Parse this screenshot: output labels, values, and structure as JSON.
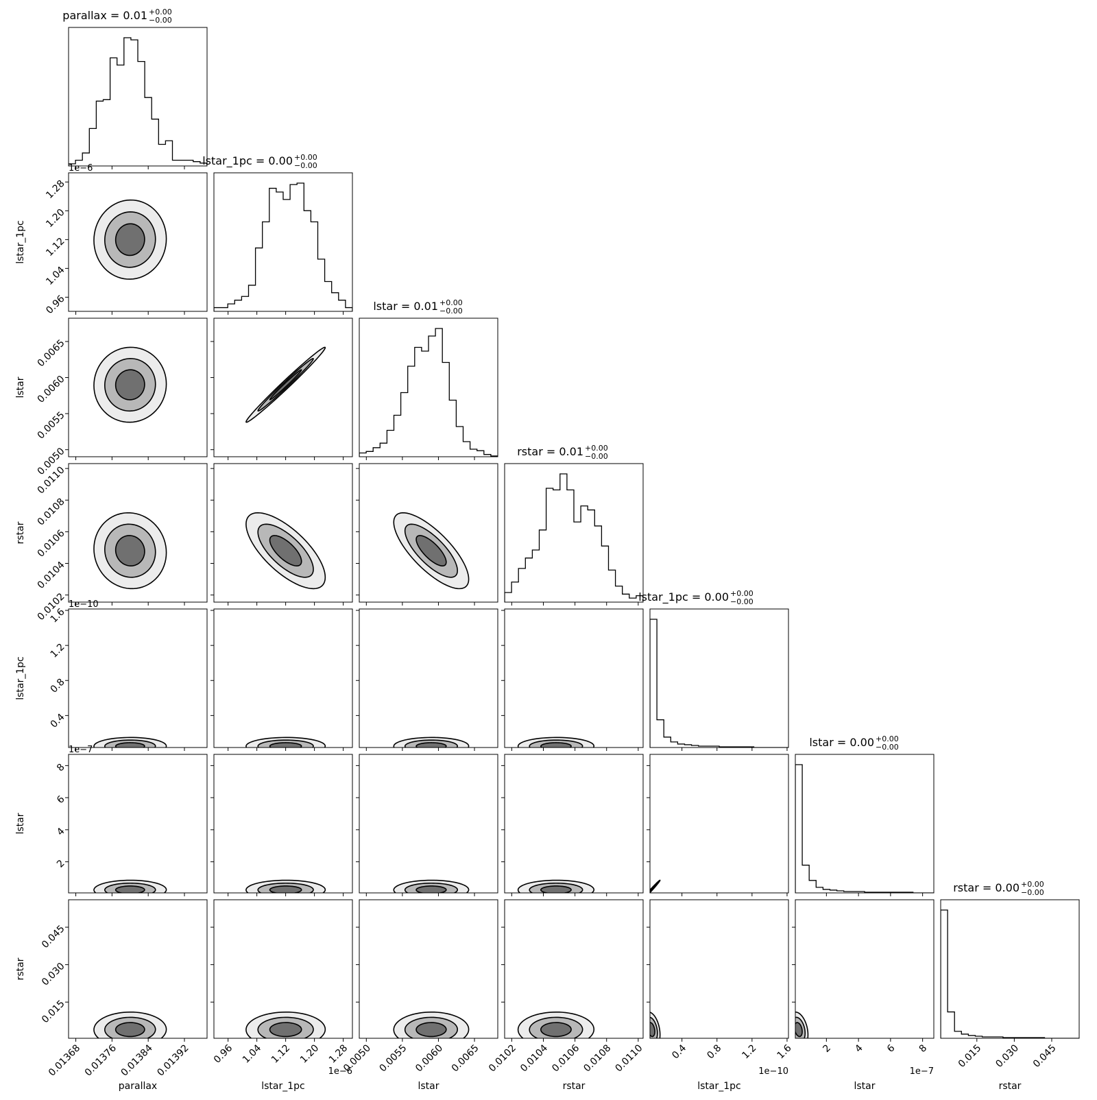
{
  "chart_data": {
    "type": "corner",
    "params": [
      {
        "label": "parallax",
        "title": "parallax = 0.01",
        "upper": "+0.00",
        "lower": "−0.00",
        "lim": [
          0.013664,
          0.01397
        ],
        "ticks": [
          0.01368,
          0.01376,
          0.01384,
          0.01392
        ],
        "counts": [
          3,
          8,
          18,
          52,
          90,
          92,
          150,
          140,
          178,
          175,
          145,
          95,
          65,
          30,
          35,
          8,
          8,
          8,
          6,
          4
        ],
        "center": 0.0138,
        "spread": 4e-05
      },
      {
        "label": "lstar_1pc",
        "title": "lstar_1pc = 0.00",
        "upper": "+0.00",
        "lower": "−0.00",
        "offset": "1e−6",
        "lim": [
          0.9207,
          1.3055
        ],
        "ticks": [
          0.96,
          1.04,
          1.12,
          {
            "value": 1.2,
            "label": "1.20"
          },
          1.28
        ],
        "counts": [
          5,
          5,
          10,
          15,
          20,
          35,
          85,
          120,
          165,
          160,
          150,
          170,
          172,
          135,
          120,
          70,
          40,
          25,
          15,
          5
        ],
        "center": 1.12,
        "spread": 0.055
      },
      {
        "label": "lstar",
        "title": "lstar = 0.01",
        "upper": "+0.00",
        "lower": "−0.00",
        "lim": [
          0.004902,
          0.006823
        ],
        "ticks": [
          {
            "value": 0.005,
            "label": "0.0050"
          },
          0.0055,
          {
            "value": 0.006,
            "label": "0.0060"
          },
          0.0065
        ],
        "counts": [
          5,
          7,
          12,
          18,
          35,
          55,
          85,
          120,
          145,
          140,
          160,
          170,
          125,
          75,
          40,
          20,
          10,
          8,
          3,
          1
        ],
        "center": 0.0059,
        "spread": 0.00026
      },
      {
        "label": "rstar",
        "title": "rstar = 0.01",
        "upper": "+0.00",
        "lower": "−0.00",
        "lim": [
          0.010155,
          0.011031
        ],
        "ticks": [
          0.0102,
          0.0104,
          0.0106,
          0.0108,
          {
            "value": 0.011,
            "label": "0.0110"
          }
        ],
        "counts": [
          12,
          25,
          42,
          55,
          65,
          90,
          142,
          140,
          160,
          140,
          100,
          120,
          115,
          95,
          70,
          40,
          20,
          10,
          5,
          8
        ],
        "center": 0.01048,
        "spread": 0.00012
      },
      {
        "label": "lstar_1pc",
        "title": "lstar_1pc = 0.00",
        "upper": "+0.00",
        "lower": "−0.00",
        "offset": "1e−10",
        "lim": [
          0.035,
          1.616
        ],
        "ticks": [
          0.4,
          0.8,
          1.2,
          1.6
        ],
        "counts": [
          185,
          40,
          15,
          8,
          5,
          4,
          3,
          2,
          2,
          2,
          1,
          1,
          1,
          1,
          1,
          0,
          0,
          0,
          0,
          0
        ],
        "center": 0.05,
        "spread": 0.05
      },
      {
        "label": "lstar",
        "title": "lstar = 0.00",
        "upper": "+0.00",
        "lower": "−0.00",
        "offset": "1e−7",
        "lim": [
          0.06,
          8.7
        ],
        "ticks": [
          2,
          4,
          6,
          8
        ],
        "counts": [
          185,
          40,
          18,
          8,
          5,
          4,
          3,
          2,
          2,
          2,
          1,
          1,
          1,
          1,
          1,
          1,
          1,
          0,
          0,
          0
        ],
        "center": 0.25,
        "spread": 0.3
      },
      {
        "label": "rstar",
        "title": "rstar = 0.00",
        "upper": "+0.00",
        "lower": "−0.00",
        "lim": [
          0.0005,
          0.056
        ],
        "ticks": [
          0.015,
          {
            "value": 0.03,
            "label": "0.030"
          },
          0.045
        ],
        "counts": [
          185,
          38,
          10,
          6,
          4,
          3,
          2,
          2,
          2,
          1,
          1,
          1,
          1,
          1,
          1,
          0,
          0,
          0,
          0,
          0
        ],
        "center": 0.004,
        "spread": 0.0035
      }
    ],
    "corr": [
      [
        0.02
      ],
      [
        0.02,
        0.99
      ],
      [
        -0.05,
        -0.7,
        -0.75
      ],
      [
        0.01,
        0.01,
        0.01,
        0.01
      ],
      [
        0.01,
        0.01,
        0.01,
        0.01,
        0.99
      ],
      [
        0.01,
        0.01,
        0.01,
        0.01,
        -0.3,
        -0.3
      ]
    ]
  }
}
